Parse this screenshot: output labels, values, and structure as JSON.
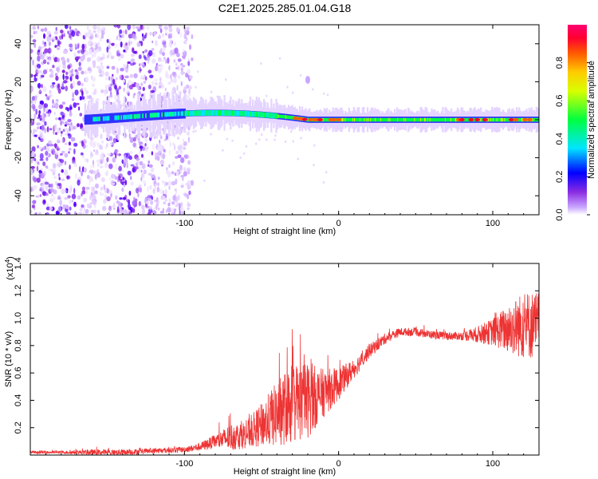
{
  "chart_data": [
    {
      "type": "heatmap",
      "title": "C2E1.2025.285.01.04.G18",
      "xlabel": "Height of straight line (km)",
      "ylabel": "Frequency (Hz)",
      "xlim": [
        -200,
        130
      ],
      "ylim": [
        -50,
        50
      ],
      "xticks": [
        -100,
        0,
        100
      ],
      "yticks": [
        -40,
        -20,
        0,
        20,
        40
      ],
      "colorbar": {
        "label": "Normalized spectral amplitude",
        "range": [
          0,
          1
        ],
        "ticks": [
          0.0,
          0.2,
          0.4,
          0.6,
          0.8
        ],
        "colormap": [
          "#ffffff",
          "#9b30ff",
          "#0000ff",
          "#00ffff",
          "#00ff00",
          "#ffff00",
          "#ff8800",
          "#ff0000",
          "#ff0066"
        ]
      },
      "features": {
        "carrier_frequency_hz": 0,
        "noise_region_x": [
          -200,
          -95
        ],
        "strong_signal_x": [
          -50,
          130
        ],
        "frequency_drift_start_x": -165,
        "frequency_drift_end_x": -20,
        "frequency_drift_max_hz": 5
      }
    },
    {
      "type": "line",
      "xlabel": "Height of straight line (km)",
      "ylabel": "SNR (10 * v/v)",
      "y_multiplier": "(x10⁴)",
      "y_multiplier_base": "(x10",
      "y_multiplier_exp": "4",
      "y_multiplier_close": ")",
      "xlim": [
        -200,
        130
      ],
      "ylim": [
        0,
        1.4
      ],
      "xticks": [
        -100,
        0,
        100
      ],
      "yticks": [
        0.2,
        0.4,
        0.6,
        0.8,
        1.0,
        1.2,
        1.4
      ],
      "color": "#ee3333",
      "series": [
        {
          "name": "SNR",
          "x": [
            -200,
            -180,
            -160,
            -140,
            -120,
            -100,
            -90,
            -80,
            -70,
            -60,
            -50,
            -40,
            -30,
            -20,
            -10,
            0,
            10,
            20,
            30,
            40,
            50,
            60,
            70,
            80,
            90,
            100,
            110,
            120,
            130
          ],
          "values": [
            0.02,
            0.02,
            0.02,
            0.02,
            0.03,
            0.04,
            0.06,
            0.1,
            0.13,
            0.15,
            0.22,
            0.3,
            0.38,
            0.4,
            0.45,
            0.52,
            0.63,
            0.76,
            0.85,
            0.9,
            0.9,
            0.88,
            0.87,
            0.87,
            0.88,
            0.9,
            0.92,
            0.95,
            0.95
          ],
          "noise_amplitude": [
            0.01,
            0.01,
            0.02,
            0.02,
            0.02,
            0.02,
            0.03,
            0.05,
            0.1,
            0.1,
            0.16,
            0.24,
            0.3,
            0.28,
            0.18,
            0.12,
            0.07,
            0.05,
            0.04,
            0.03,
            0.03,
            0.03,
            0.03,
            0.03,
            0.06,
            0.1,
            0.18,
            0.25,
            0.25
          ]
        }
      ]
    }
  ]
}
